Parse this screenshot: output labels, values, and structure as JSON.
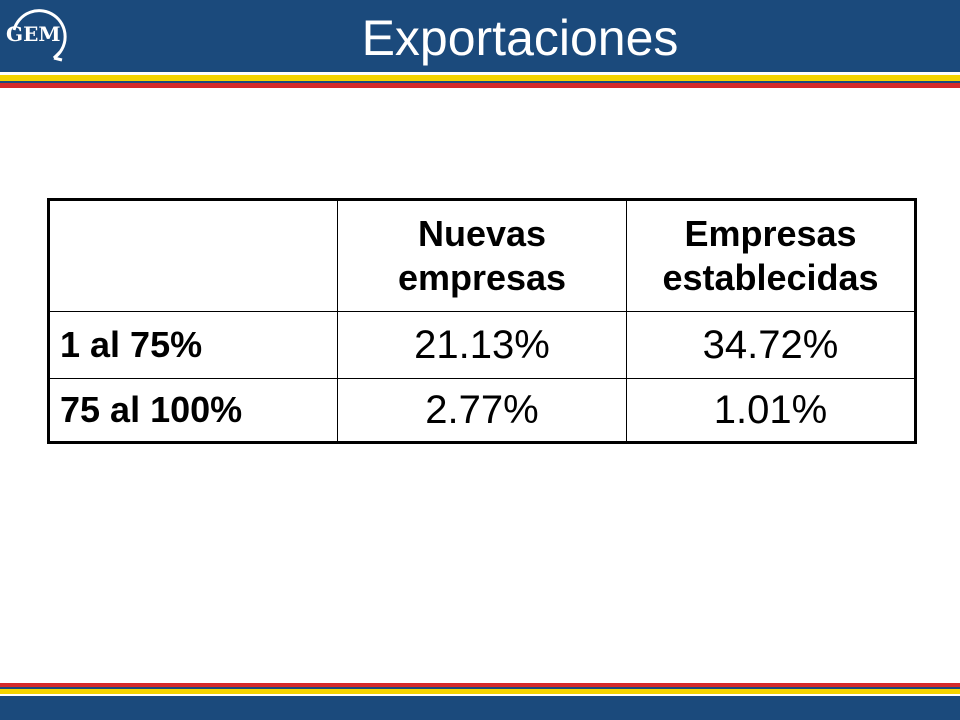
{
  "slide": {
    "title": "Exportaciones",
    "logo_text": "GEM"
  },
  "colors": {
    "header_blue": "#1b4a7c",
    "stripe_yellow": "#f5d400",
    "stripe_red": "#d42a2a"
  },
  "table": {
    "columns": [
      "",
      "Nuevas empresas",
      "Empresas establecidas"
    ],
    "rows": [
      {
        "label": "1 al 75%",
        "values": [
          "21.13%",
          "34.72%"
        ]
      },
      {
        "label": "75 al 100%",
        "values": [
          "2.77%",
          "1.01%"
        ]
      }
    ]
  }
}
